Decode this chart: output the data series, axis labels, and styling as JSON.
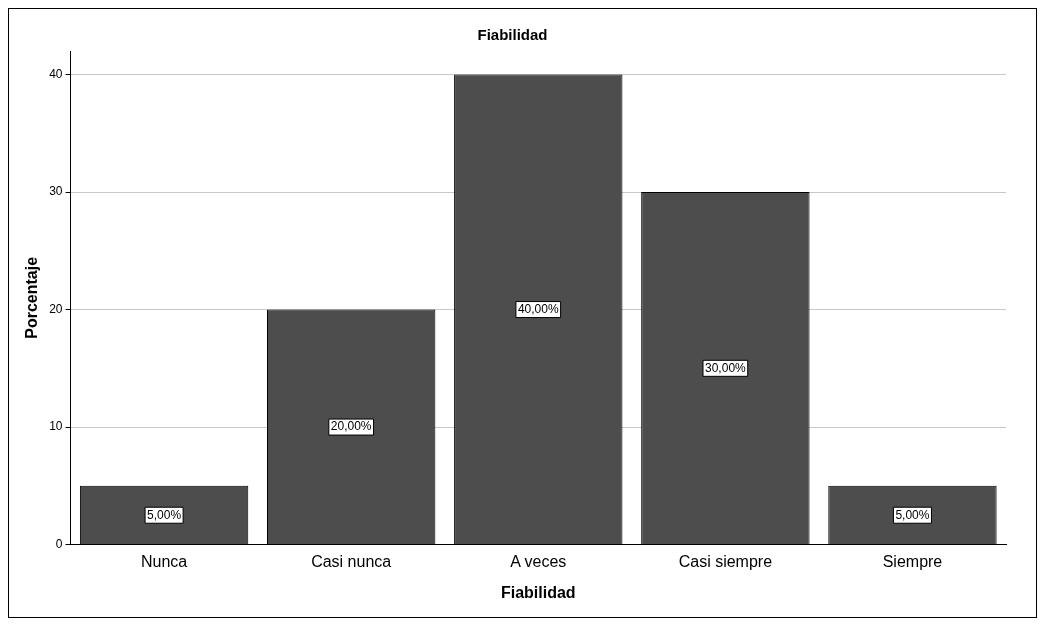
{
  "chart_data": {
    "type": "bar",
    "title": "Fiabilidad",
    "xlabel": "Fiabilidad",
    "ylabel": "Porcentaje",
    "categories": [
      "Nunca",
      "Casi nunca",
      "A veces",
      "Casi siempre",
      "Siempre"
    ],
    "values": [
      5,
      20,
      40,
      30,
      5
    ],
    "value_labels": [
      "5,00%",
      "20,00%",
      "40,00%",
      "30,00%",
      "5,00%"
    ],
    "color": "#4d4d4d",
    "ylim": [
      0,
      42
    ],
    "yticks": [
      0,
      10,
      20,
      30,
      40
    ],
    "grid": "y",
    "legend": false
  }
}
